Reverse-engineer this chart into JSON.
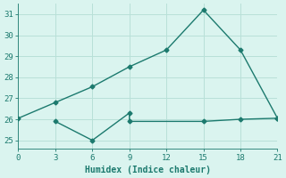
{
  "line1_x": [
    0,
    3,
    6,
    9,
    12,
    15,
    18,
    21
  ],
  "line1_y": [
    26.05,
    26.8,
    27.55,
    28.5,
    29.3,
    31.2,
    29.3,
    26.05
  ],
  "line2_x": [
    3,
    6,
    9,
    9,
    15,
    18,
    21
  ],
  "line2_y": [
    25.9,
    25.0,
    26.3,
    25.9,
    25.9,
    26.0,
    26.05
  ],
  "line_color": "#1c7a6e",
  "bg_color": "#daf4ef",
  "grid_color": "#b8e0d8",
  "xlabel": "Humidex (Indice chaleur)",
  "xticks": [
    0,
    3,
    6,
    9,
    12,
    15,
    18,
    21
  ],
  "yticks": [
    25,
    26,
    27,
    28,
    29,
    30,
    31
  ],
  "xlim": [
    0,
    21
  ],
  "ylim": [
    24.6,
    31.5
  ],
  "marker": "D",
  "markersize": 2.5,
  "linewidth": 1.0
}
